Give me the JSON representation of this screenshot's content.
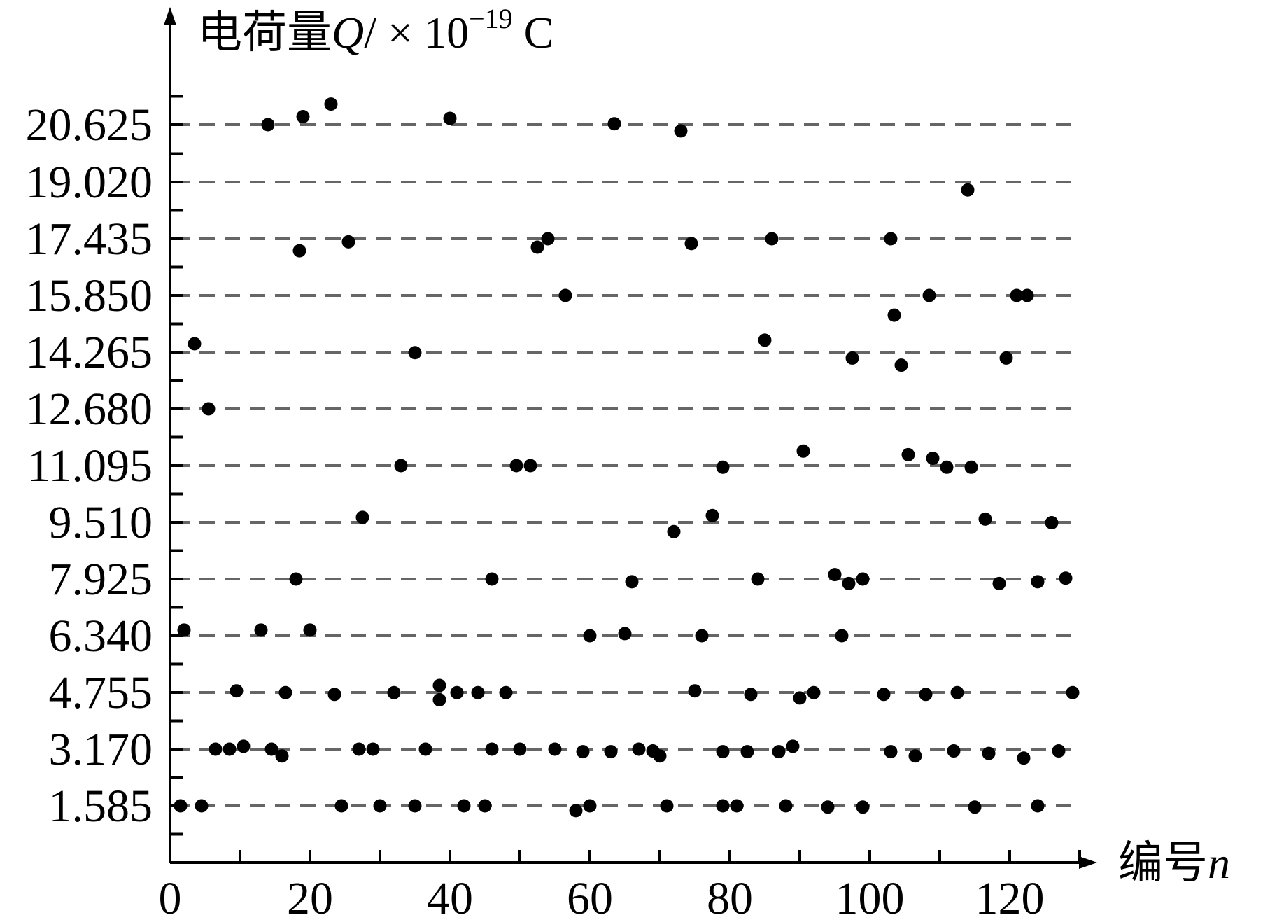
{
  "chart_data": {
    "type": "scatter",
    "ylabel": {
      "prefix": "电荷量",
      "symbol": "Q",
      "unit_prefix": "/ × 10",
      "exponent": "−19",
      "unit": " C"
    },
    "xlabel": {
      "prefix": "编号",
      "symbol": "n"
    },
    "y_ticks": [
      "1.585",
      "3.170",
      "4.755",
      "6.340",
      "7.925",
      "9.510",
      "11.095",
      "12.680",
      "14.265",
      "15.850",
      "17.435",
      "19.020",
      "20.625"
    ],
    "y_tick_values": [
      1.585,
      3.17,
      4.755,
      6.34,
      7.925,
      9.51,
      11.095,
      12.68,
      14.265,
      15.85,
      17.435,
      19.02,
      20.625
    ],
    "x_ticks": [
      "0",
      "20",
      "40",
      "60",
      "80",
      "100",
      "120"
    ],
    "x_tick_values": [
      0,
      20,
      40,
      60,
      80,
      100,
      120
    ],
    "xlim": [
      0,
      131
    ],
    "ylim": [
      0,
      22.5
    ],
    "grid": "horizontal dashed at each y tick",
    "points": [
      [
        1.5,
        1.585
      ],
      [
        4.5,
        1.585
      ],
      [
        24.5,
        1.585
      ],
      [
        30,
        1.585
      ],
      [
        35,
        1.585
      ],
      [
        42,
        1.585
      ],
      [
        45,
        1.585
      ],
      [
        58,
        1.45
      ],
      [
        60,
        1.585
      ],
      [
        71,
        1.585
      ],
      [
        79,
        1.585
      ],
      [
        81,
        1.585
      ],
      [
        88,
        1.585
      ],
      [
        94,
        1.55
      ],
      [
        99,
        1.55
      ],
      [
        115,
        1.55
      ],
      [
        124,
        1.585
      ],
      [
        6.5,
        3.17
      ],
      [
        8.5,
        3.17
      ],
      [
        10.5,
        3.25
      ],
      [
        14.5,
        3.17
      ],
      [
        16,
        2.98
      ],
      [
        27,
        3.17
      ],
      [
        29,
        3.17
      ],
      [
        36.5,
        3.17
      ],
      [
        46,
        3.17
      ],
      [
        50,
        3.17
      ],
      [
        55,
        3.17
      ],
      [
        59,
        3.1
      ],
      [
        63,
        3.1
      ],
      [
        67,
        3.17
      ],
      [
        69,
        3.12
      ],
      [
        70,
        2.98
      ],
      [
        79,
        3.1
      ],
      [
        82.5,
        3.1
      ],
      [
        87,
        3.1
      ],
      [
        89,
        3.25
      ],
      [
        103,
        3.1
      ],
      [
        106.5,
        2.98
      ],
      [
        112,
        3.12
      ],
      [
        117,
        3.05
      ],
      [
        122,
        2.92
      ],
      [
        127,
        3.12
      ],
      [
        9.5,
        4.8
      ],
      [
        16.5,
        4.75
      ],
      [
        23.5,
        4.7
      ],
      [
        32,
        4.75
      ],
      [
        38.5,
        4.95
      ],
      [
        38.5,
        4.55
      ],
      [
        41,
        4.75
      ],
      [
        44,
        4.75
      ],
      [
        48,
        4.75
      ],
      [
        75,
        4.8
      ],
      [
        83,
        4.7
      ],
      [
        90,
        4.6
      ],
      [
        92,
        4.75
      ],
      [
        102,
        4.7
      ],
      [
        108,
        4.7
      ],
      [
        112.5,
        4.75
      ],
      [
        129,
        4.75
      ],
      [
        2,
        6.5
      ],
      [
        13,
        6.5
      ],
      [
        20,
        6.5
      ],
      [
        60,
        6.34
      ],
      [
        65,
        6.4
      ],
      [
        76,
        6.34
      ],
      [
        96,
        6.34
      ],
      [
        18,
        7.925
      ],
      [
        46,
        7.925
      ],
      [
        66,
        7.85
      ],
      [
        84,
        7.925
      ],
      [
        95,
        8.05
      ],
      [
        97,
        7.8
      ],
      [
        99,
        7.925
      ],
      [
        118.5,
        7.8
      ],
      [
        124,
        7.85
      ],
      [
        128,
        7.95
      ],
      [
        27.5,
        9.65
      ],
      [
        72,
        9.25
      ],
      [
        77.5,
        9.7
      ],
      [
        116.5,
        9.6
      ],
      [
        126,
        9.5
      ],
      [
        33,
        11.095
      ],
      [
        49.5,
        11.095
      ],
      [
        51.5,
        11.095
      ],
      [
        79,
        11.05
      ],
      [
        90.5,
        11.5
      ],
      [
        105.5,
        11.4
      ],
      [
        109,
        11.3
      ],
      [
        111,
        11.05
      ],
      [
        114.5,
        11.05
      ],
      [
        5.5,
        12.68
      ],
      [
        3.5,
        14.5
      ],
      [
        35,
        14.25
      ],
      [
        85,
        14.6
      ],
      [
        97.5,
        14.1
      ],
      [
        104.5,
        13.9
      ],
      [
        119.5,
        14.1
      ],
      [
        56.5,
        15.85
      ],
      [
        103.5,
        15.3
      ],
      [
        108.5,
        15.85
      ],
      [
        121,
        15.85
      ],
      [
        122.5,
        15.85
      ],
      [
        18.5,
        17.1
      ],
      [
        25.5,
        17.35
      ],
      [
        52.5,
        17.2
      ],
      [
        54,
        17.435
      ],
      [
        74.5,
        17.3
      ],
      [
        86,
        17.435
      ],
      [
        103,
        17.435
      ],
      [
        114,
        18.8
      ],
      [
        14,
        20.625
      ],
      [
        19,
        20.85
      ],
      [
        23,
        21.2
      ],
      [
        40,
        20.8
      ],
      [
        63.5,
        20.65
      ],
      [
        73,
        20.45
      ]
    ]
  }
}
